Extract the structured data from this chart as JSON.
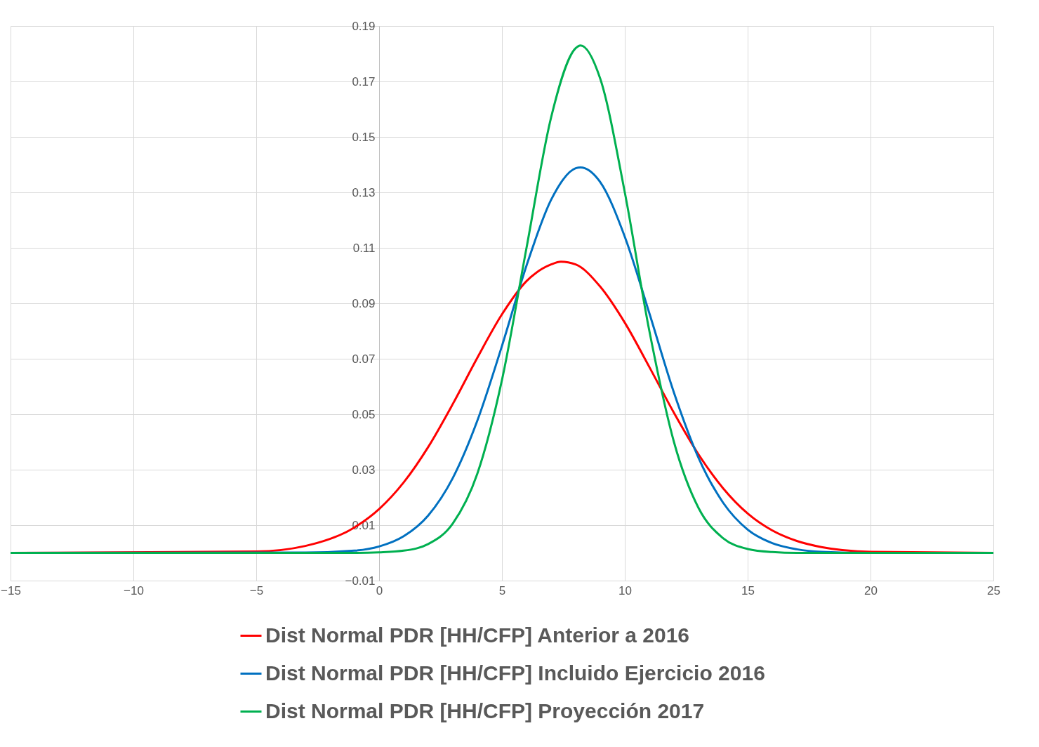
{
  "chart_data": {
    "type": "line",
    "xlim": [
      -15,
      25
    ],
    "xticks": [
      -15,
      -10,
      -5,
      0,
      5,
      10,
      15,
      20,
      25
    ],
    "ylim": [
      -0.01,
      0.19
    ],
    "yticks": [
      -0.01,
      0.01,
      0.03,
      0.05,
      0.07,
      0.09,
      0.11,
      0.13,
      0.15,
      0.17,
      0.19
    ],
    "grid": true,
    "legend": "bottom",
    "marker": "none",
    "line_style": "solid",
    "series": [
      {
        "name": "Dist Normal PDR [HH/CFP] Anterior a 2016",
        "color": "#ff0000",
        "x": [
          -15,
          -5,
          -3,
          -1,
          0,
          1,
          2,
          3,
          4,
          5,
          6,
          7,
          7.4,
          8,
          9,
          10,
          11,
          12,
          13,
          14,
          15,
          16,
          17,
          18,
          20,
          25
        ],
        "values": [
          0,
          0.0005,
          0.0025,
          0.0092,
          0.0158,
          0.0254,
          0.0382,
          0.0537,
          0.0704,
          0.086,
          0.098,
          0.104,
          0.105,
          0.104,
          0.096,
          0.083,
          0.067,
          0.0505,
          0.0355,
          0.0233,
          0.0142,
          0.0081,
          0.0043,
          0.0021,
          0.0004,
          0
        ]
      },
      {
        "name": "Dist Normal PDR [HH/CFP] Incluido Ejercicio 2016",
        "color": "#0070c0",
        "x": [
          -15,
          -3,
          -1,
          0,
          1,
          2,
          3,
          4,
          5,
          6,
          7,
          8,
          8.2,
          9,
          10,
          11,
          12,
          13,
          14,
          15,
          16,
          17,
          18,
          20,
          25
        ],
        "values": [
          0,
          0.0001,
          0.0008,
          0.0023,
          0.006,
          0.0135,
          0.027,
          0.0477,
          0.0746,
          0.1036,
          0.1273,
          0.1387,
          0.139,
          0.1337,
          0.114,
          0.0864,
          0.0578,
          0.0343,
          0.0181,
          0.0084,
          0.0035,
          0.0013,
          0.0004,
          0,
          0
        ]
      },
      {
        "name": "Dist Normal PDR [HH/CFP] Proyección 2017",
        "color": "#00b050",
        "x": [
          -15,
          -1,
          0,
          1,
          2,
          3,
          4,
          5,
          6,
          7,
          8,
          8.2,
          9,
          10,
          11,
          12,
          13,
          14,
          15,
          16,
          17,
          25
        ],
        "values": [
          0,
          0,
          0.0002,
          0.0008,
          0.0032,
          0.0106,
          0.0286,
          0.0623,
          0.11,
          0.157,
          0.182,
          0.183,
          0.171,
          0.13,
          0.08,
          0.04,
          0.0162,
          0.0053,
          0.0014,
          0.0003,
          0,
          0
        ]
      }
    ]
  }
}
